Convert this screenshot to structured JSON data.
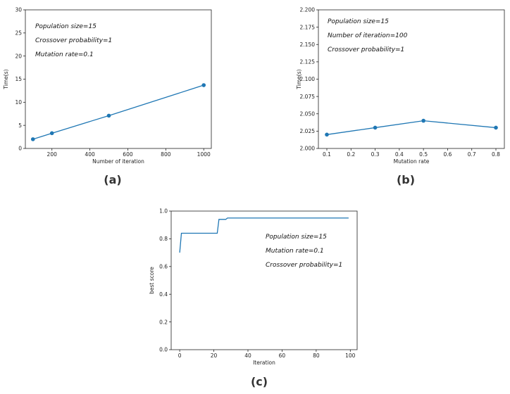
{
  "colors": {
    "series": "#1f77b4",
    "axis": "#222222"
  },
  "chart_data": [
    {
      "type": "line",
      "panel_label": "(a)",
      "xlabel": "Number of iteration",
      "ylabel": "Time(s)",
      "xlim": [
        60,
        1040
      ],
      "ylim": [
        0,
        30
      ],
      "xticks": [
        200,
        400,
        600,
        800,
        1000
      ],
      "yticks": [
        0,
        5,
        10,
        15,
        20,
        25,
        30
      ],
      "ytick_decimals": 0,
      "markers": true,
      "series": [
        {
          "x": [
            100,
            200,
            500,
            1000
          ],
          "y": [
            2.0,
            3.3,
            7.1,
            13.7
          ]
        }
      ],
      "annotations": [
        "Population size=15",
        "Crossover probability=1",
        "Mutation rate=0.1"
      ],
      "grid": false
    },
    {
      "type": "line",
      "panel_label": "(b)",
      "xlabel": "Mutation rate",
      "ylabel": "Time(s)",
      "xlim": [
        0.065,
        0.835
      ],
      "ylim": [
        2.0,
        2.2
      ],
      "xticks": [
        0.1,
        0.2,
        0.3,
        0.4,
        0.5,
        0.6,
        0.7,
        0.8
      ],
      "yticks": [
        2.0,
        2.025,
        2.05,
        2.075,
        2.1,
        2.125,
        2.15,
        2.175,
        2.2
      ],
      "ytick_decimals": 3,
      "markers": true,
      "series": [
        {
          "x": [
            0.1,
            0.3,
            0.5,
            0.8
          ],
          "y": [
            2.02,
            2.03,
            2.04,
            2.03
          ]
        }
      ],
      "annotations": [
        "Population size=15",
        "Number of iteration=100",
        "Crossover probability=1"
      ],
      "grid": false
    },
    {
      "type": "line",
      "panel_label": "(c)",
      "xlabel": "Iteration",
      "ylabel": "best score",
      "xlim": [
        -5,
        104
      ],
      "ylim": [
        0.0,
        1.0
      ],
      "xticks": [
        0,
        20,
        40,
        60,
        80,
        100
      ],
      "yticks": [
        0.0,
        0.2,
        0.4,
        0.6,
        0.8,
        1.0
      ],
      "ytick_decimals": 1,
      "markers": false,
      "series": [
        {
          "x": [
            0,
            1,
            22,
            23,
            27,
            28,
            99
          ],
          "y": [
            0.7,
            0.84,
            0.84,
            0.94,
            0.94,
            0.95,
            0.95
          ]
        }
      ],
      "annotations": [
        "Population size=15",
        "Mutation rate=0.1",
        "Crossover probability=1"
      ],
      "grid": false
    }
  ]
}
